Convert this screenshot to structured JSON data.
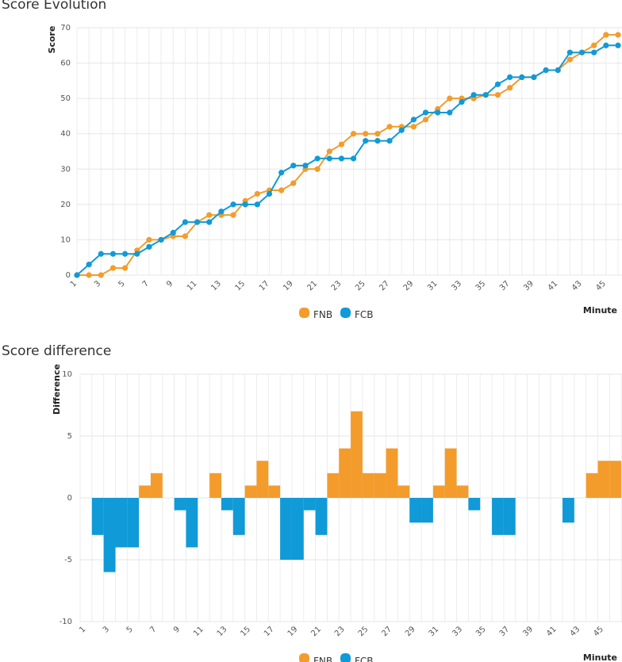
{
  "colors": {
    "FNB": "#f39c2b",
    "FCB": "#109ad7"
  },
  "chart_data": [
    {
      "type": "line",
      "title": "Score Evolution",
      "xlabel": "Minute",
      "ylabel": "Score",
      "x": [
        1,
        2,
        3,
        4,
        5,
        6,
        7,
        8,
        9,
        10,
        11,
        12,
        13,
        14,
        15,
        16,
        17,
        18,
        19,
        20,
        21,
        22,
        23,
        24,
        25,
        26,
        27,
        28,
        29,
        30,
        31,
        32,
        33,
        34,
        35,
        36,
        37,
        38,
        39,
        40,
        41,
        42,
        43,
        44,
        45,
        46
      ],
      "x_tick_labels": [
        "1",
        "3",
        "5",
        "7",
        "9",
        "11",
        "13",
        "15",
        "17",
        "19",
        "21",
        "23",
        "25",
        "27",
        "29",
        "31",
        "33",
        "35",
        "37",
        "39",
        "41",
        "43",
        "45"
      ],
      "ylim": [
        0,
        70
      ],
      "y_ticks": [
        0,
        10,
        20,
        30,
        40,
        50,
        60,
        70
      ],
      "grid": true,
      "legend": "bottom-center",
      "series": [
        {
          "name": "FNB",
          "values": [
            0,
            0,
            0,
            2,
            2,
            7,
            10,
            10,
            11,
            11,
            15,
            17,
            17,
            17,
            21,
            23,
            24,
            24,
            26,
            30,
            30,
            35,
            37,
            40,
            40,
            40,
            42,
            42,
            42,
            44,
            47,
            50,
            50,
            50,
            51,
            51,
            53,
            56,
            56,
            58,
            58,
            61,
            63,
            65,
            68,
            68
          ]
        },
        {
          "name": "FCB",
          "values": [
            0,
            3,
            6,
            6,
            6,
            6,
            8,
            10,
            12,
            15,
            15,
            15,
            18,
            20,
            20,
            20,
            23,
            29,
            31,
            31,
            33,
            33,
            33,
            33,
            38,
            38,
            38,
            41,
            44,
            46,
            46,
            46,
            49,
            51,
            51,
            54,
            56,
            56,
            56,
            58,
            58,
            63,
            63,
            63,
            65,
            65
          ]
        }
      ]
    },
    {
      "type": "bar",
      "title": "Score difference",
      "xlabel": "Minute",
      "ylabel": "Difference",
      "x": [
        1,
        2,
        3,
        4,
        5,
        6,
        7,
        8,
        9,
        10,
        11,
        12,
        13,
        14,
        15,
        16,
        17,
        18,
        19,
        20,
        21,
        22,
        23,
        24,
        25,
        26,
        27,
        28,
        29,
        30,
        31,
        32,
        33,
        34,
        35,
        36,
        37,
        38,
        39,
        40,
        41,
        42,
        43,
        44,
        45,
        46
      ],
      "x_tick_labels": [
        "1",
        "3",
        "5",
        "7",
        "9",
        "11",
        "13",
        "15",
        "17",
        "19",
        "21",
        "23",
        "25",
        "27",
        "29",
        "31",
        "33",
        "35",
        "37",
        "39",
        "41",
        "43",
        "45"
      ],
      "ylim": [
        -10,
        10
      ],
      "y_ticks": [
        -10,
        -5,
        0,
        5,
        10
      ],
      "grid": true,
      "legend": "bottom-center",
      "legend_items": [
        "FNB",
        "FCB"
      ],
      "values": [
        0,
        -3,
        -6,
        -4,
        -4,
        1,
        2,
        0,
        -1,
        -4,
        0,
        2,
        -1,
        -3,
        1,
        3,
        1,
        -5,
        -5,
        -1,
        -3,
        2,
        4,
        7,
        2,
        2,
        4,
        1,
        -2,
        -2,
        1,
        4,
        1,
        -1,
        0,
        -3,
        -3,
        0,
        0,
        0,
        0,
        -2,
        0,
        2,
        3,
        3
      ]
    }
  ]
}
